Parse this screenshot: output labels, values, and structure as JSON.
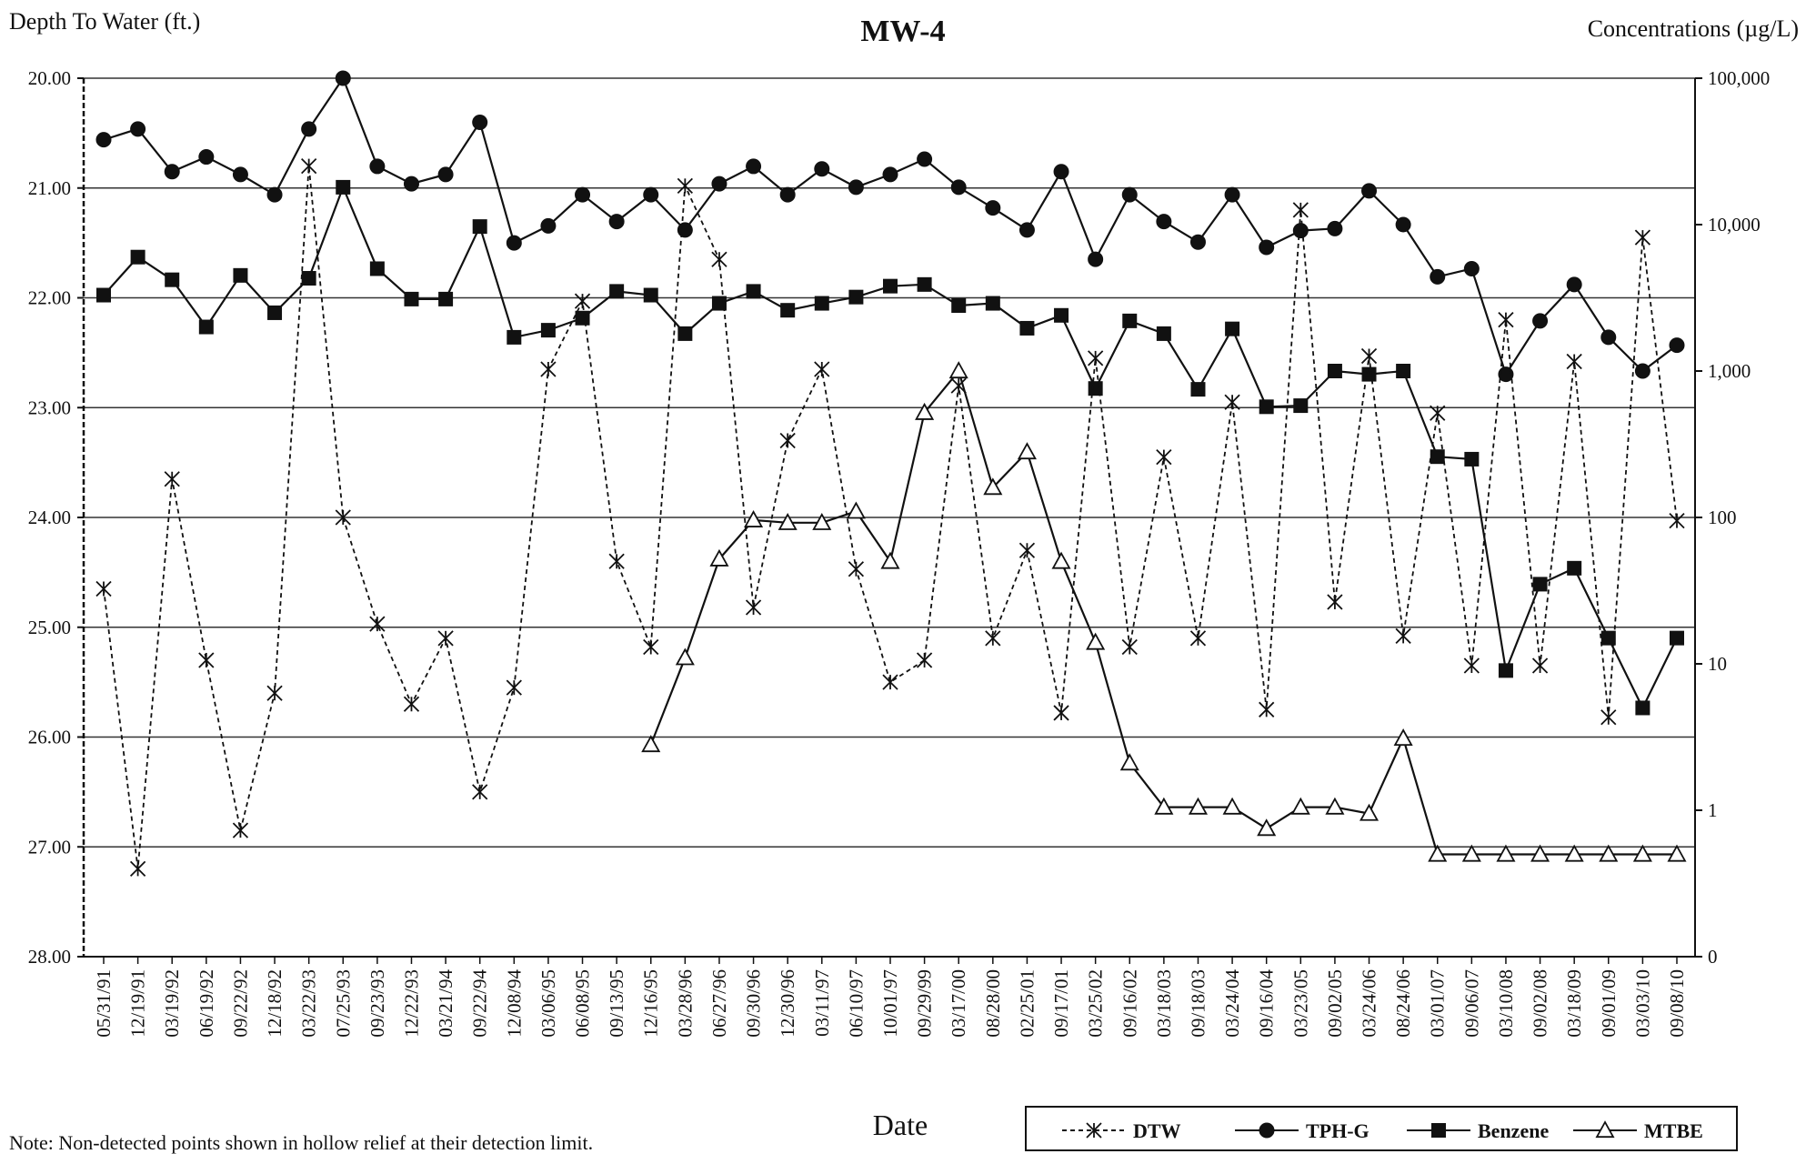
{
  "chart_data": {
    "type": "line",
    "title": "MW-4",
    "left_axis_label": "Depth To Water (ft.)",
    "right_axis_label": "Concentrations (µg/L)",
    "xlabel": "Date",
    "note": "Note: Non-detected points shown in hollow relief at their detection limit.",
    "left_axis": {
      "range": [
        20.0,
        28.0
      ],
      "inverted": true,
      "ticks": [
        "20.00",
        "21.00",
        "22.00",
        "23.00",
        "24.00",
        "25.00",
        "26.00",
        "27.00",
        "28.00"
      ]
    },
    "right_axis": {
      "scale": "log",
      "range": [
        0.1,
        100000
      ],
      "ticks": [
        {
          "value": 0.1,
          "label": "0"
        },
        {
          "value": 1,
          "label": "1"
        },
        {
          "value": 10,
          "label": "10"
        },
        {
          "value": 100,
          "label": "100"
        },
        {
          "value": 1000,
          "label": "1,000"
        },
        {
          "value": 10000,
          "label": "10,000"
        },
        {
          "value": 100000,
          "label": "100,000"
        }
      ]
    },
    "grid": "horizontal",
    "legend_position": "bottom-right",
    "x": [
      "05/31/91",
      "12/19/91",
      "03/19/92",
      "06/19/92",
      "09/22/92",
      "12/18/92",
      "03/22/93",
      "07/25/93",
      "09/23/93",
      "12/22/93",
      "03/21/94",
      "09/22/94",
      "12/08/94",
      "03/06/95",
      "06/08/95",
      "09/13/95",
      "12/16/95",
      "03/28/96",
      "06/27/96",
      "09/30/96",
      "12/30/96",
      "03/11/97",
      "06/10/97",
      "10/01/97",
      "09/29/99",
      "03/17/00",
      "08/28/00",
      "02/25/01",
      "09/17/01",
      "03/25/02",
      "09/16/02",
      "03/18/03",
      "09/18/03",
      "03/24/04",
      "09/16/04",
      "03/23/05",
      "09/02/05",
      "03/24/06",
      "08/24/06",
      "03/01/07",
      "09/06/07",
      "03/10/08",
      "09/02/08",
      "03/18/09",
      "09/01/09",
      "03/03/10",
      "09/08/10"
    ],
    "series": [
      {
        "name": "DTW",
        "axis": "left",
        "marker": "star",
        "dash": true,
        "values": [
          24.65,
          27.2,
          23.65,
          25.3,
          26.85,
          25.6,
          20.8,
          24.0,
          24.97,
          25.7,
          25.1,
          26.5,
          25.55,
          22.65,
          22.03,
          24.4,
          25.18,
          20.98,
          21.65,
          24.82,
          23.3,
          22.65,
          24.47,
          25.5,
          25.3,
          22.8,
          25.1,
          24.3,
          25.78,
          22.55,
          25.18,
          23.45,
          25.1,
          22.95,
          25.75,
          21.2,
          24.77,
          22.53,
          25.08,
          23.05,
          25.35,
          22.2,
          25.35,
          22.58,
          25.82,
          21.45,
          24.03
        ]
      },
      {
        "name": "TPH-G",
        "axis": "right",
        "marker": "circle",
        "values": [
          38000,
          45000,
          23000,
          29000,
          22000,
          16000,
          45000,
          100000,
          25000,
          19000,
          22000,
          50000,
          7500,
          9800,
          16000,
          10500,
          16000,
          9200,
          19000,
          25000,
          16000,
          24000,
          18000,
          22000,
          28000,
          18000,
          13000,
          9200,
          23000,
          5800,
          16000,
          10500,
          7600,
          16000,
          7000,
          9100,
          9400,
          17000,
          10000,
          4400,
          5000,
          950,
          2200,
          3900,
          1700,
          1000,
          1500
        ]
      },
      {
        "name": "Benzene",
        "axis": "right",
        "marker": "square",
        "values": [
          3300,
          6000,
          4200,
          2000,
          4500,
          2500,
          4300,
          18000,
          5000,
          3100,
          3100,
          9700,
          1700,
          1900,
          2300,
          3500,
          3300,
          1800,
          2900,
          3500,
          2600,
          2900,
          3200,
          3800,
          3900,
          2800,
          2900,
          1960,
          2400,
          760,
          2200,
          1800,
          750,
          1940,
          570,
          580,
          1000,
          950,
          1000,
          260,
          250,
          9,
          35,
          45,
          15,
          5,
          15
        ]
      },
      {
        "name": "MTBE",
        "axis": "right",
        "marker": "triangle",
        "hollow": true,
        "values": [
          null,
          null,
          null,
          null,
          null,
          null,
          null,
          null,
          null,
          null,
          null,
          null,
          null,
          null,
          null,
          null,
          2.8,
          11,
          52,
          96,
          92,
          92,
          110,
          50,
          520,
          1000,
          160,
          280,
          50,
          14,
          2.1,
          1.05,
          1.05,
          1.05,
          0.75,
          1.05,
          1.05,
          0.95,
          3.1,
          0.5,
          0.5,
          0.5,
          0.5,
          0.5,
          0.5,
          0.5,
          0.5
        ]
      }
    ]
  }
}
